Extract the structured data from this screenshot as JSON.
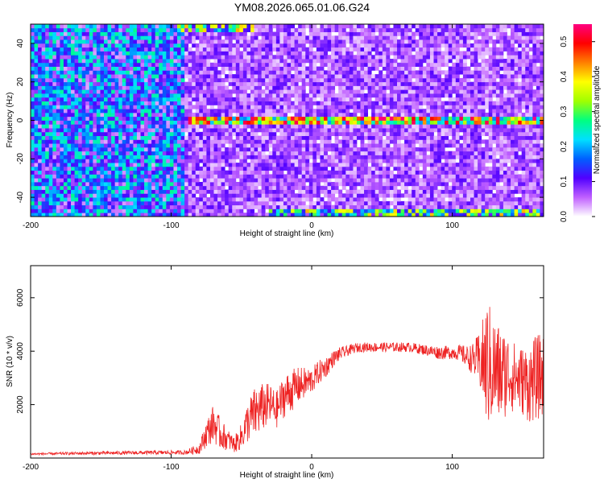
{
  "title": "YM08.2026.065.01.06.G24",
  "chart_data": [
    {
      "type": "heatmap",
      "xlabel": "Height of straight line (km)",
      "ylabel": "Frequency (Hz)",
      "xlim": [
        -200,
        165
      ],
      "ylim": [
        -50,
        50
      ],
      "xticks": [
        -200,
        -100,
        0,
        100
      ],
      "yticks": [
        -40,
        -20,
        0,
        20,
        40
      ],
      "grid": false,
      "colorbar": {
        "label": "Normalized spectral amplitude",
        "range": [
          0.0,
          0.55
        ],
        "ticks": [
          0.0,
          0.1,
          0.2,
          0.3,
          0.4,
          0.5
        ],
        "colormap": [
          "#ffffff",
          "#c060ff",
          "#5000ff",
          "#0060ff",
          "#00e0ff",
          "#00ff80",
          "#a0ff00",
          "#ffff00",
          "#ff8000",
          "#ff0000",
          "#ff0080"
        ]
      },
      "features": [
        {
          "kind": "noise-background",
          "x_range": [
            -200,
            -90
          ],
          "level": 0.15
        },
        {
          "kind": "noise-background",
          "x_range": [
            -90,
            165
          ],
          "level": 0.06
        },
        {
          "kind": "signal-line",
          "frequency": 0,
          "x_range": [
            -88,
            165
          ],
          "peak_level": 0.5
        },
        {
          "kind": "edge-band",
          "frequency": 48,
          "x_range": [
            -95,
            -40
          ],
          "level": 0.3
        },
        {
          "kind": "edge-band",
          "frequency": -48,
          "x_range": [
            -30,
            165
          ],
          "level": 0.3
        }
      ]
    },
    {
      "type": "line",
      "xlabel": "Height of straight line (km)",
      "ylabel": "SNR (10 * v/v)",
      "xlim": [
        -200,
        165
      ],
      "ylim": [
        0,
        7200
      ],
      "xticks": [
        -200,
        -100,
        0,
        100
      ],
      "yticks": [
        2000,
        4000,
        6000
      ],
      "grid": false,
      "color": "#ee2222",
      "series": [
        {
          "x": [
            -200,
            -160,
            -120,
            -90,
            -80,
            -75,
            -70,
            -65,
            -60,
            -55,
            -50,
            -45,
            -40,
            -35,
            -30,
            -25,
            -20,
            -15,
            -10,
            -5,
            0,
            5,
            10,
            15,
            20,
            25,
            30,
            35,
            40,
            50,
            60,
            70,
            80,
            90,
            100,
            105,
            110,
            115,
            120,
            125,
            130,
            135,
            140,
            145,
            150,
            155,
            160,
            165
          ],
          "values": [
            150,
            180,
            200,
            210,
            350,
            900,
            1300,
            900,
            700,
            500,
            800,
            1400,
            1700,
            1900,
            2000,
            1800,
            2300,
            2500,
            2700,
            2800,
            2900,
            3200,
            3400,
            3700,
            3900,
            4000,
            4100,
            4150,
            4150,
            4150,
            4150,
            4150,
            4050,
            3950,
            3950,
            3950,
            3800,
            3700,
            3600,
            3500,
            3300,
            3100,
            3200,
            3000,
            2900,
            2800,
            3000,
            3100
          ],
          "spread": [
            40,
            60,
            70,
            80,
            200,
            500,
            700,
            600,
            400,
            300,
            500,
            800,
            1000,
            900,
            800,
            700,
            800,
            800,
            700,
            600,
            500,
            450,
            400,
            300,
            250,
            200,
            180,
            180,
            180,
            180,
            180,
            180,
            200,
            250,
            250,
            300,
            400,
            600,
            1200,
            2500,
            2000,
            1800,
            1500,
            1300,
            1300,
            1500,
            1600,
            1600
          ]
        }
      ]
    }
  ]
}
